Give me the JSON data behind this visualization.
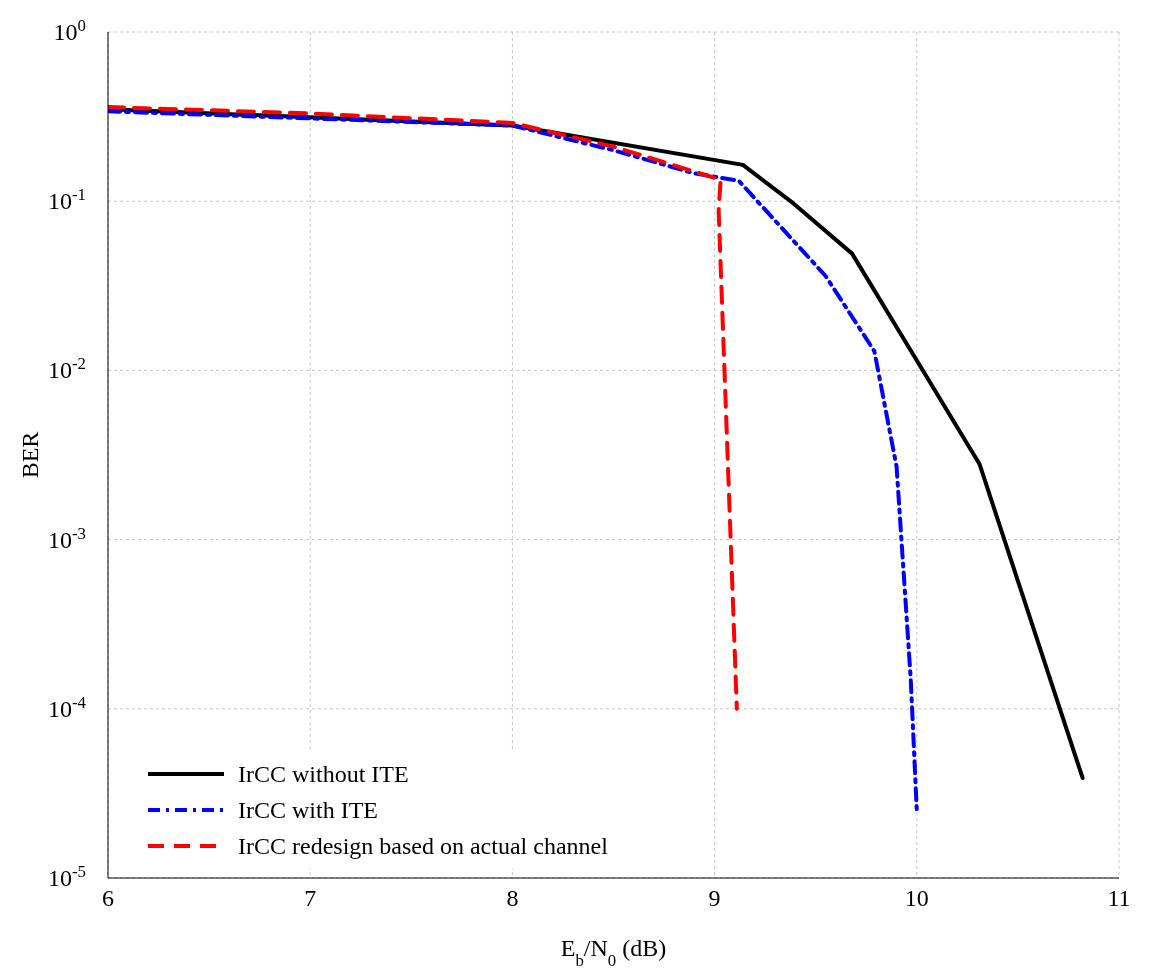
{
  "chart_data": {
    "type": "line",
    "xlabel": "E$_{b}$/N$_{0}$ (dB)",
    "ylabel": "BER",
    "log": "y",
    "grid": true,
    "legend": "bottom left",
    "marker": "none",
    "xlim": [
      6,
      11
    ],
    "xticks": [
      6,
      7,
      8,
      9,
      10,
      11
    ],
    "ylim": [
      1e-05,
      1
    ],
    "yticks": [
      {
        "value": 1,
        "label": "10$^{0}$"
      },
      {
        "value": 0.1,
        "label": "10$^{-1}$"
      },
      {
        "value": 0.01,
        "label": "10$^{-2}$"
      },
      {
        "value": 0.001,
        "label": "10$^{-3}$"
      },
      {
        "value": 0.0001,
        "label": "10$^{-4}$"
      },
      {
        "value": 1e-05,
        "label": "10$^{-5}$"
      }
    ],
    "series": [
      {
        "name": "IrCC without ITE",
        "color": "#000000",
        "line_style": "solid",
        "x": [
          6,
          8,
          9.14,
          9.39,
          9.68,
          10.31,
          10.82
        ],
        "values": [
          0.35,
          0.28,
          0.164,
          0.097,
          0.049,
          0.0028,
          3.9e-05
        ]
      },
      {
        "name": "IrCC with ITE",
        "color": "#0000ff",
        "line_style": "dashdot",
        "x": [
          6,
          8,
          8.5,
          8.9,
          9.12,
          9.18,
          9.55,
          9.79,
          9.9,
          9.97,
          10.0
        ],
        "values": [
          0.34,
          0.28,
          0.2,
          0.146,
          0.132,
          0.11,
          0.036,
          0.013,
          0.0027,
          0.00015,
          2.5e-05
        ]
      },
      {
        "name": "IrCC redesign based on actual channel",
        "color": "#ff0000",
        "line_style": "dashed",
        "x": [
          6,
          7,
          8,
          8.5,
          9.03,
          9.02,
          9.11
        ],
        "values": [
          0.36,
          0.33,
          0.29,
          0.21,
          0.134,
          0.088,
          0.0001
        ]
      }
    ]
  }
}
